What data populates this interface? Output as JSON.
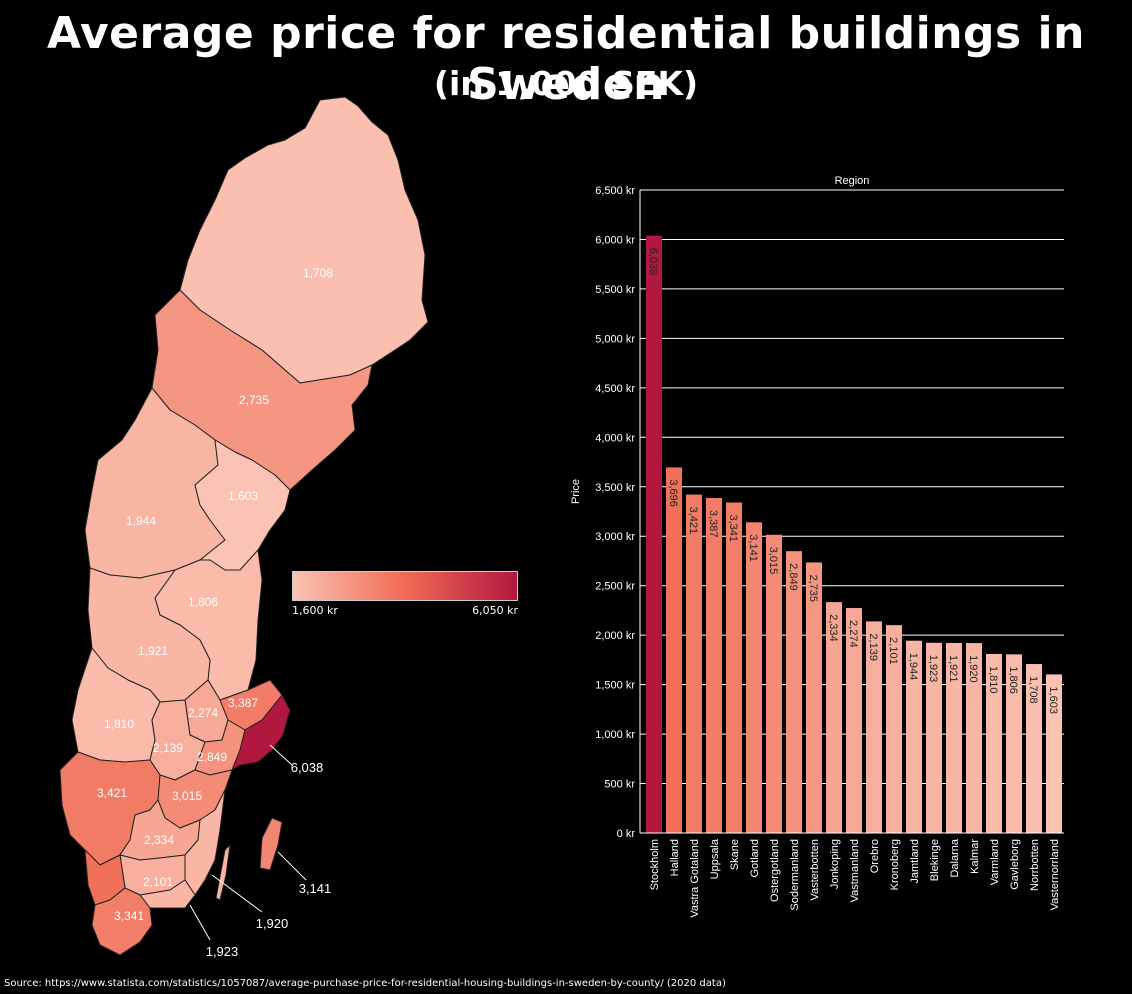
{
  "title": "Average price for residential buildings in Sweden",
  "subtitle": "(in 1,000 SEK)",
  "source": "Source: https://www.statista.com/statistics/1057087/average-purchase-price-for-residential-housing-buildings-in-sweden-by-county/ (2020 data)",
  "legend": {
    "min_label": "1,600 kr",
    "max_label": "6,050 kr",
    "min": 1600,
    "max": 6050,
    "color_low": "#fbc3b3",
    "color_mid": "#f06b55",
    "color_high": "#b2173f"
  },
  "map_labels": [
    {
      "county": "Norrbotten",
      "text": "1,708",
      "value": 1708
    },
    {
      "county": "Vasterbotten",
      "text": "2,735",
      "value": 2735
    },
    {
      "county": "Vasternorrland",
      "text": "1,603",
      "value": 1603
    },
    {
      "county": "Jamtland",
      "text": "1,944",
      "value": 1944
    },
    {
      "county": "Gavleborg",
      "text": "1,806",
      "value": 1806
    },
    {
      "county": "Dalarna",
      "text": "1,921",
      "value": 1921
    },
    {
      "county": "Varmland",
      "text": "1,810",
      "value": 1810
    },
    {
      "county": "Vastmanland",
      "text": "2,274",
      "value": 2274
    },
    {
      "county": "Uppsala",
      "text": "3,387",
      "value": 3387
    },
    {
      "county": "Orebro",
      "text": "2,139",
      "value": 2139
    },
    {
      "county": "Sodermanland",
      "text": "2,849",
      "value": 2849
    },
    {
      "county": "Stockholm",
      "text": "6,038",
      "value": 6038
    },
    {
      "county": "Vastra Gotaland",
      "text": "3,421",
      "value": 3421
    },
    {
      "county": "Ostergotland",
      "text": "3,015",
      "value": 3015
    },
    {
      "county": "Jonkoping",
      "text": "2,334",
      "value": 2334
    },
    {
      "county": "Kronoberg",
      "text": "2,101",
      "value": 2101
    },
    {
      "county": "Skane",
      "text": "3,341",
      "value": 3341
    },
    {
      "county": "Kalmar",
      "text": "1,920",
      "value": 1920
    },
    {
      "county": "Blekinge",
      "text": "1,923",
      "value": 1923
    },
    {
      "county": "Gotland",
      "text": "3,141",
      "value": 3141
    },
    {
      "county": "Halland",
      "text": "3,696",
      "value": 3696
    }
  ],
  "chart_data": {
    "type": "bar",
    "title": "Region",
    "ylabel": "Price",
    "xlabel": "",
    "ylim": [
      0,
      6500
    ],
    "yticks": [
      {
        "value": 0,
        "label": "0 kr"
      },
      {
        "value": 500,
        "label": "500 kr"
      },
      {
        "value": 1000,
        "label": "1,000 kr"
      },
      {
        "value": 1500,
        "label": "1,500 kr"
      },
      {
        "value": 2000,
        "label": "2,000 kr"
      },
      {
        "value": 2500,
        "label": "2,500 kr"
      },
      {
        "value": 3000,
        "label": "3,000 kr"
      },
      {
        "value": 3500,
        "label": "3,500 kr"
      },
      {
        "value": 4000,
        "label": "4,000 kr"
      },
      {
        "value": 4500,
        "label": "4,500 kr"
      },
      {
        "value": 5000,
        "label": "5,000 kr"
      },
      {
        "value": 5500,
        "label": "5,500 kr"
      },
      {
        "value": 6000,
        "label": "6,000 kr"
      },
      {
        "value": 6500,
        "label": "6,500 kr"
      }
    ],
    "grid": true,
    "categories": [
      "Stockholm",
      "Halland",
      "Vastra Gotaland",
      "Uppsala",
      "Skane",
      "Gotland",
      "Ostergotland",
      "Sodermanland",
      "Vasterbotten",
      "Jonkoping",
      "Vastmanland",
      "Orebro",
      "Kronoberg",
      "Jamtland",
      "Blekinge",
      "Dalarna",
      "Kalmar",
      "Varmland",
      "Gavleborg",
      "Norrbotten",
      "Vasternorrland"
    ],
    "values": [
      6038,
      3696,
      3421,
      3387,
      3341,
      3141,
      3015,
      2849,
      2735,
      2334,
      2274,
      2139,
      2101,
      1944,
      1923,
      1921,
      1920,
      1810,
      1806,
      1708,
      1603
    ],
    "value_labels": [
      "6,038",
      "3,696",
      "3,421",
      "3,387",
      "3,341",
      "3,141",
      "3,015",
      "2,849",
      "2,735",
      "2,334",
      "2,274",
      "2,139",
      "2,101",
      "1,944",
      "1,923",
      "1,921",
      "1,920",
      "1,810",
      "1,806",
      "1,708",
      "1,603"
    ]
  }
}
